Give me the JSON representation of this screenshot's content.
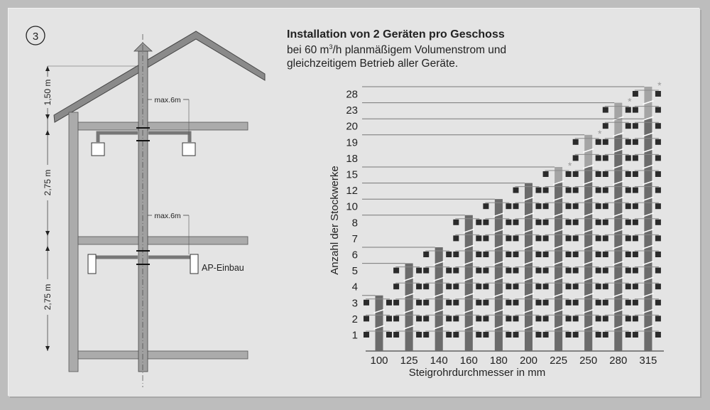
{
  "figure_number": "3",
  "header": {
    "title": "Installation von 2 Geräten pro Geschoss",
    "subtitle_line1_pre": "bei 60 m",
    "subtitle_line1_sup": "3",
    "subtitle_line1_post": "/h planmäßigem Volumenstrom und",
    "subtitle_line2": "gleichzeitigem Betrieb aller Geräte."
  },
  "diagram": {
    "dimensions": [
      "1,50 m",
      "2,75 m",
      "2,75 m"
    ],
    "max_distance_labels": [
      "max.6m",
      "max.6m"
    ],
    "device_label": "AP-Einbau"
  },
  "colors": {
    "bar_dark": "#6b6b6b",
    "bar_light": "#a4a4a4",
    "marker": "#2b2b2b",
    "background": "#e4e4e4"
  },
  "chart_data": {
    "type": "bar",
    "xlabel": "Steigrohrdurchmesser in mm",
    "ylabel": "Anzahl der Stockwerke",
    "categories": [
      "100",
      "125",
      "140",
      "160",
      "180",
      "200",
      "225",
      "250",
      "280",
      "315"
    ],
    "y_ticks": [
      "1",
      "2",
      "3",
      "4",
      "5",
      "6",
      "7",
      "8",
      "10",
      "12",
      "15",
      "18",
      "19",
      "20",
      "23",
      "28"
    ],
    "y_scale": "categorical (non-linear)",
    "values": [
      3,
      5,
      6,
      8,
      10,
      12,
      15,
      19,
      23,
      28
    ],
    "dark_values": [
      3,
      5,
      6,
      8,
      10,
      12,
      12,
      15,
      19,
      20
    ],
    "asterisk": [
      false,
      false,
      false,
      false,
      false,
      false,
      true,
      true,
      true,
      true
    ],
    "asterisk_symbol": "*",
    "grid": false
  }
}
